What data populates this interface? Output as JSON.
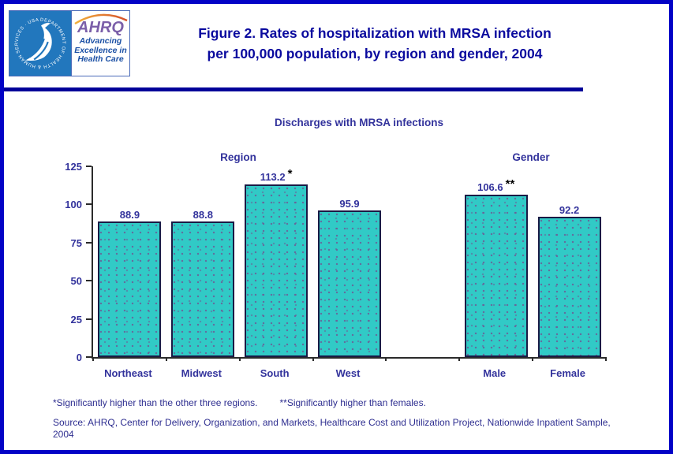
{
  "header": {
    "logo": {
      "seal_text": "DEPARTMENT OF HEALTH & HUMAN SERVICES · USA",
      "acronym": "AHRQ",
      "tagline_lines": [
        "Advancing",
        "Excellence in",
        "Health Care"
      ]
    },
    "title_line1": "Figure 2. Rates of hospitalization with MRSA infection",
    "title_line2": "per 100,000 population, by region and gender, 2004"
  },
  "chart_data": {
    "type": "bar",
    "title": "Discharges with MRSA infections",
    "group_labels": [
      "Region",
      "Gender"
    ],
    "categories": [
      "Northeast",
      "Midwest",
      "South",
      "West",
      "Male",
      "Female"
    ],
    "groups": [
      "Region",
      "Region",
      "Region",
      "Region",
      "Gender",
      "Gender"
    ],
    "values": [
      88.9,
      88.8,
      113.2,
      95.9,
      106.6,
      92.2
    ],
    "annotations": [
      "",
      "",
      "*",
      "",
      "**",
      ""
    ],
    "ylim": [
      0,
      125
    ],
    "yticks": [
      0,
      25,
      50,
      75,
      100,
      125
    ],
    "xlabel": "",
    "ylabel": "",
    "grid": false,
    "legend": "none",
    "bar_color": "#31cac6",
    "label_color": "#33339c"
  },
  "footnotes": {
    "note1": "*Significantly higher than the other three regions.",
    "note2": "**Significantly higher than females.",
    "source": "Source: AHRQ, Center for Delivery, Organization, and Markets, Healthcare Cost and Utilization Project, Nationwide Inpatient Sample, 2004"
  }
}
